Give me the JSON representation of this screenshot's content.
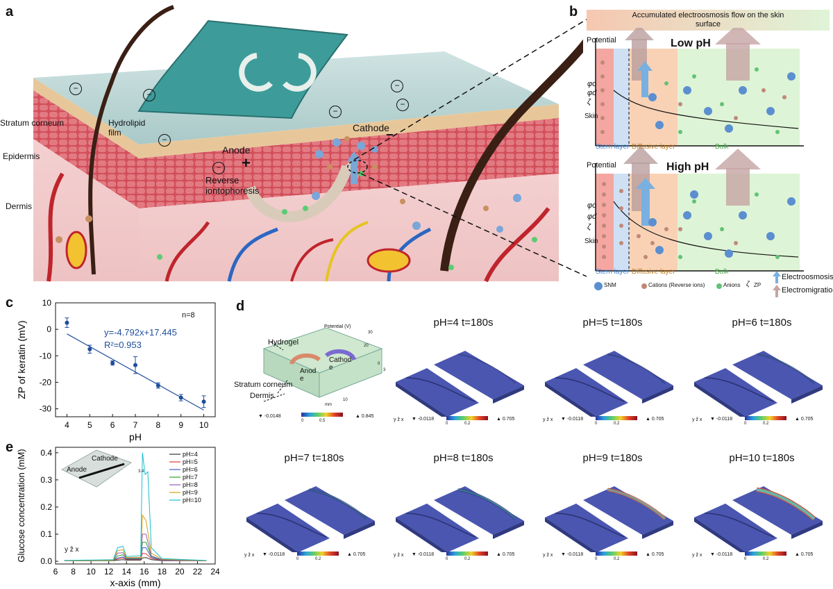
{
  "panels": {
    "a": "a",
    "b": "b",
    "c": "c",
    "d": "d",
    "e": "e"
  },
  "panel_a": {
    "layers": [
      "Stratum corneum",
      "Epidermis",
      "Dermis"
    ],
    "film": "Hydrolipid\nfilm",
    "anode": "Anode",
    "cathode": "Cathode",
    "ri": "Reverse\niontophoresis",
    "plus": "+",
    "minus": "−",
    "neg": "−"
  },
  "panel_b": {
    "banner": "Accumulated electroosmosis flow on the skin\nsurface",
    "low": {
      "title": "Low pH",
      "potential": "Potential",
      "skin": "Skin",
      "phi0": "φo",
      "phid": "φd",
      "zeta": "ζ",
      "stern": "Stern layer",
      "diffusive": "Diffusive layer",
      "bulk": "Bulk"
    },
    "high": {
      "title": "High pH",
      "potential": "Potential",
      "skin": "Skin",
      "phi0": "φo",
      "phid": "φd",
      "zeta": "ζ",
      "stern": "Stern layer",
      "diffusive": "Diffusive layer",
      "bulk": "Bulk"
    },
    "legend": {
      "snm": "SNM",
      "cations": "Cations (Reverse ions)",
      "anions": "Anions",
      "zp_sym": "ζ",
      "zp": "ZP",
      "eo": "Electroosmosis",
      "em": "Electromigration"
    }
  },
  "panel_c": {
    "nlabel": "n=8",
    "fit": "y=-4.792x+17.445",
    "r2": "R²=0.953"
  },
  "panel_d": {
    "schematic": {
      "potential": "Potential (V)",
      "hydrogel": "Hydrogel",
      "stratum": "Stratum corneum",
      "dermis": "Dermis",
      "anode": "Anod\ne",
      "cathode": "Cathod\ne",
      "min": "▼ -0.0148",
      "max": "▲ 0.845",
      "s0": "0",
      "s1": "0.5",
      "ax_30": "30",
      "ax_20": "20",
      "ax_10": "10",
      "ax_0": "0",
      "ax_3": "3",
      "ax_mm": "mm"
    },
    "sims": [
      {
        "title": "pH=4 t=180s"
      },
      {
        "title": "pH=5 t=180s"
      },
      {
        "title": "pH=6 t=180s"
      },
      {
        "title": "pH=7 t=180s"
      },
      {
        "title": "pH=8 t=180s"
      },
      {
        "title": "pH=9 t=180s"
      },
      {
        "title": "pH=10 t=180s"
      }
    ],
    "scale": {
      "min": "▼ -0.0118",
      "max": "▲ 0.705",
      "s0": "0",
      "s1": "0.2"
    },
    "axis_glyph": "y ẑ x"
  },
  "panel_e": {
    "inset": {
      "anode": "Anode",
      "cathode": "Cathode"
    },
    "axis_glyph": "y ẑ x",
    "annot_34": "3.4"
  },
  "chart_data": [
    {
      "type": "scatter",
      "xlabel": "pH",
      "ylabel": "ZP of keratin (mV)",
      "xlim": [
        3.5,
        10.5
      ],
      "ylim": [
        -33,
        10
      ],
      "xticks": [
        4,
        5,
        6,
        7,
        8,
        9,
        10
      ],
      "yticks": [
        10,
        0,
        -10,
        -20,
        -30
      ],
      "x": [
        4,
        5,
        6,
        7,
        8,
        9,
        10
      ],
      "y": [
        2.5,
        -7.5,
        -12.7,
        -13.5,
        -21.2,
        -25.8,
        -27.3
      ],
      "yerr": [
        1.8,
        1.5,
        0.8,
        3.2,
        1.0,
        1.2,
        2.2
      ],
      "fit": {
        "slope": -4.792,
        "intercept": 17.445
      },
      "grid": false
    },
    {
      "type": "line",
      "xlabel": "x-axis (mm)",
      "ylabel": "Glucose concentration (mM)",
      "xlim": [
        6,
        24
      ],
      "ylim": [
        -0.01,
        0.42
      ],
      "xticks": [
        6,
        8,
        10,
        12,
        14,
        16,
        18,
        20,
        22,
        24
      ],
      "yticks": [
        0.0,
        0.1,
        0.2,
        0.3,
        0.4
      ],
      "legend_position": "top-right",
      "series": [
        {
          "name": "pH=4",
          "color": "#333333",
          "points": [
            [
              7,
              0.002
            ],
            [
              12.5,
              0.002
            ],
            [
              13,
              0.004
            ],
            [
              13.6,
              0.006
            ],
            [
              14,
              0.004
            ],
            [
              15.6,
              0.004
            ],
            [
              15.8,
              0.012
            ],
            [
              16.2,
              0.014
            ],
            [
              16.8,
              0.006
            ],
            [
              18,
              0.002
            ],
            [
              23,
              0.002
            ]
          ]
        },
        {
          "name": "pH=5",
          "color": "#e03c31",
          "points": [
            [
              7,
              0.002
            ],
            [
              12.5,
              0.003
            ],
            [
              13,
              0.008
            ],
            [
              13.6,
              0.012
            ],
            [
              14,
              0.006
            ],
            [
              15.6,
              0.006
            ],
            [
              15.8,
              0.03
            ],
            [
              16.2,
              0.028
            ],
            [
              16.8,
              0.01
            ],
            [
              18,
              0.003
            ],
            [
              23,
              0.002
            ]
          ]
        },
        {
          "name": "pH=6",
          "color": "#3a5fcd",
          "points": [
            [
              7,
              0.002
            ],
            [
              12.5,
              0.003
            ],
            [
              13,
              0.012
            ],
            [
              13.6,
              0.016
            ],
            [
              14,
              0.008
            ],
            [
              15.6,
              0.008
            ],
            [
              15.8,
              0.05
            ],
            [
              16.2,
              0.05
            ],
            [
              16.8,
              0.014
            ],
            [
              18,
              0.004
            ],
            [
              23,
              0.002
            ]
          ]
        },
        {
          "name": "pH=7",
          "color": "#2ca02c",
          "points": [
            [
              7,
              0.002
            ],
            [
              12.5,
              0.003
            ],
            [
              13,
              0.02
            ],
            [
              13.6,
              0.024
            ],
            [
              14,
              0.01
            ],
            [
              15.6,
              0.01
            ],
            [
              15.8,
              0.07
            ],
            [
              16.2,
              0.07
            ],
            [
              16.8,
              0.018
            ],
            [
              18,
              0.005
            ],
            [
              23,
              0.002
            ]
          ]
        },
        {
          "name": "pH=8",
          "color": "#9b59b6",
          "points": [
            [
              7,
              0.002
            ],
            [
              12.5,
              0.004
            ],
            [
              13,
              0.03
            ],
            [
              13.6,
              0.032
            ],
            [
              14,
              0.012
            ],
            [
              15.6,
              0.012
            ],
            [
              15.8,
              0.1
            ],
            [
              16.2,
              0.1
            ],
            [
              16.8,
              0.02
            ],
            [
              18,
              0.006
            ],
            [
              23,
              0.002
            ]
          ]
        },
        {
          "name": "pH=9",
          "color": "#d4a017",
          "points": [
            [
              7,
              0.002
            ],
            [
              12.5,
              0.004
            ],
            [
              13,
              0.04
            ],
            [
              13.6,
              0.042
            ],
            [
              14,
              0.014
            ],
            [
              15.6,
              0.014
            ],
            [
              15.8,
              0.17
            ],
            [
              16.2,
              0.15
            ],
            [
              16.8,
              0.03
            ],
            [
              18,
              0.008
            ],
            [
              23,
              0.002
            ]
          ]
        },
        {
          "name": "pH=10",
          "color": "#17becf",
          "points": [
            [
              7,
              0.003
            ],
            [
              12.5,
              0.006
            ],
            [
              13,
              0.05
            ],
            [
              13.6,
              0.055
            ],
            [
              14,
              0.018
            ],
            [
              15.6,
              0.02
            ],
            [
              15.8,
              0.4
            ],
            [
              16.1,
              0.32
            ],
            [
              16.4,
              0.33
            ],
            [
              16.8,
              0.05
            ],
            [
              18,
              0.01
            ],
            [
              23,
              0.003
            ]
          ]
        }
      ]
    }
  ]
}
